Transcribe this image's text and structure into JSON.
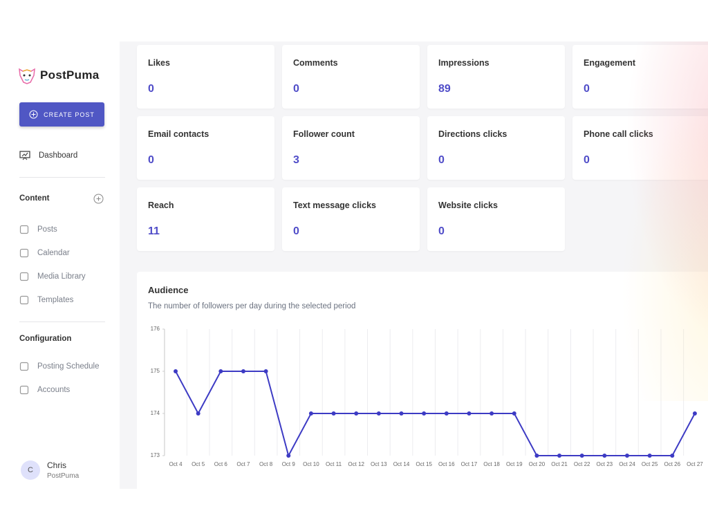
{
  "sidebar": {
    "brand": "PostPuma",
    "create_button": "CREATE POST",
    "dashboard": "Dashboard",
    "content_section": {
      "title": "Content",
      "items": [
        "Posts",
        "Calendar",
        "Media Library",
        "Templates"
      ]
    },
    "configuration_section": {
      "title": "Configuration",
      "items": [
        "Posting Schedule",
        "Accounts"
      ]
    },
    "user": {
      "initial": "C",
      "name": "Chris",
      "org": "PostPuma"
    }
  },
  "stats": [
    {
      "label": "Likes",
      "value": 0
    },
    {
      "label": "Comments",
      "value": 0
    },
    {
      "label": "Impressions",
      "value": 89
    },
    {
      "label": "Engagement",
      "value": 0
    },
    {
      "label": "Email contacts",
      "value": 0
    },
    {
      "label": "Follower count",
      "value": 3
    },
    {
      "label": "Directions clicks",
      "value": 0
    },
    {
      "label": "Phone call clicks",
      "value": 0
    },
    {
      "label": "Reach",
      "value": 11
    },
    {
      "label": "Text message clicks",
      "value": 0
    },
    {
      "label": "Website clicks",
      "value": 0
    }
  ],
  "chart_data": {
    "type": "line",
    "title": "Audience",
    "subtitle": "The number of followers per day during the selected period",
    "categories": [
      "Oct 4",
      "Oct 5",
      "Oct 6",
      "Oct 7",
      "Oct 8",
      "Oct 9",
      "Oct 10",
      "Oct 11",
      "Oct 12",
      "Oct 13",
      "Oct 14",
      "Oct 15",
      "Oct 16",
      "Oct 17",
      "Oct 18",
      "Oct 19",
      "Oct 20",
      "Oct 21",
      "Oct 22",
      "Oct 23",
      "Oct 24",
      "Oct 25",
      "Oct 26",
      "Oct 27"
    ],
    "values": [
      175,
      174,
      175,
      175,
      175,
      173,
      174,
      174,
      174,
      174,
      174,
      174,
      174,
      174,
      174,
      174,
      173,
      173,
      173,
      173,
      173,
      173,
      173,
      174
    ],
    "color": "#3d3bc4",
    "ylim": [
      173,
      176
    ],
    "yticks": [
      173,
      174,
      175,
      176
    ]
  }
}
